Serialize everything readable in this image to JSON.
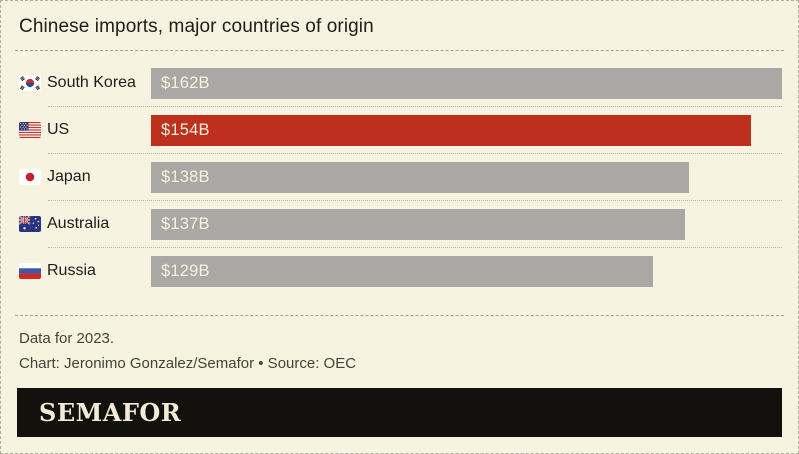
{
  "title": "Chinese imports, major countries of origin",
  "chart_data": {
    "type": "bar",
    "orientation": "horizontal",
    "unit": "USD billions",
    "max_value": 162,
    "categories": [
      "South Korea",
      "US",
      "Japan",
      "Australia",
      "Russia"
    ],
    "values": [
      162,
      154,
      138,
      137,
      129
    ],
    "rows": [
      {
        "label": "South Korea",
        "value": 162,
        "value_label": "$162B",
        "flag_icon": "flag-south-korea-icon",
        "color": "#a9a8a4"
      },
      {
        "label": "US",
        "value": 154,
        "value_label": "$154B",
        "flag_icon": "flag-us-icon",
        "color": "#bf2f1d"
      },
      {
        "label": "Japan",
        "value": 138,
        "value_label": "$138B",
        "flag_icon": "flag-japan-icon",
        "color": "#a9a8a4"
      },
      {
        "label": "Australia",
        "value": 137,
        "value_label": "$137B",
        "flag_icon": "flag-australia-icon",
        "color": "#a9a8a4"
      },
      {
        "label": "Russia",
        "value": 129,
        "value_label": "$129B",
        "flag_icon": "flag-russia-icon",
        "color": "#a9a8a4"
      }
    ],
    "highlighted_row": "US",
    "legend": "none",
    "grid": "off"
  },
  "footer": {
    "note": "Data for 2023.",
    "credit": "Chart: Jeronimo Gonzalez/Semafor • Source: OEC"
  },
  "logo": {
    "text": "SEMAFOR"
  },
  "colors": {
    "background": "#f7f3e1",
    "bar_default": "#a9a8a4",
    "bar_highlight": "#bf2f1d",
    "bar_value_text": "#f6f2e0",
    "logo_background": "#13110d",
    "logo_text": "#f2ecd7"
  }
}
